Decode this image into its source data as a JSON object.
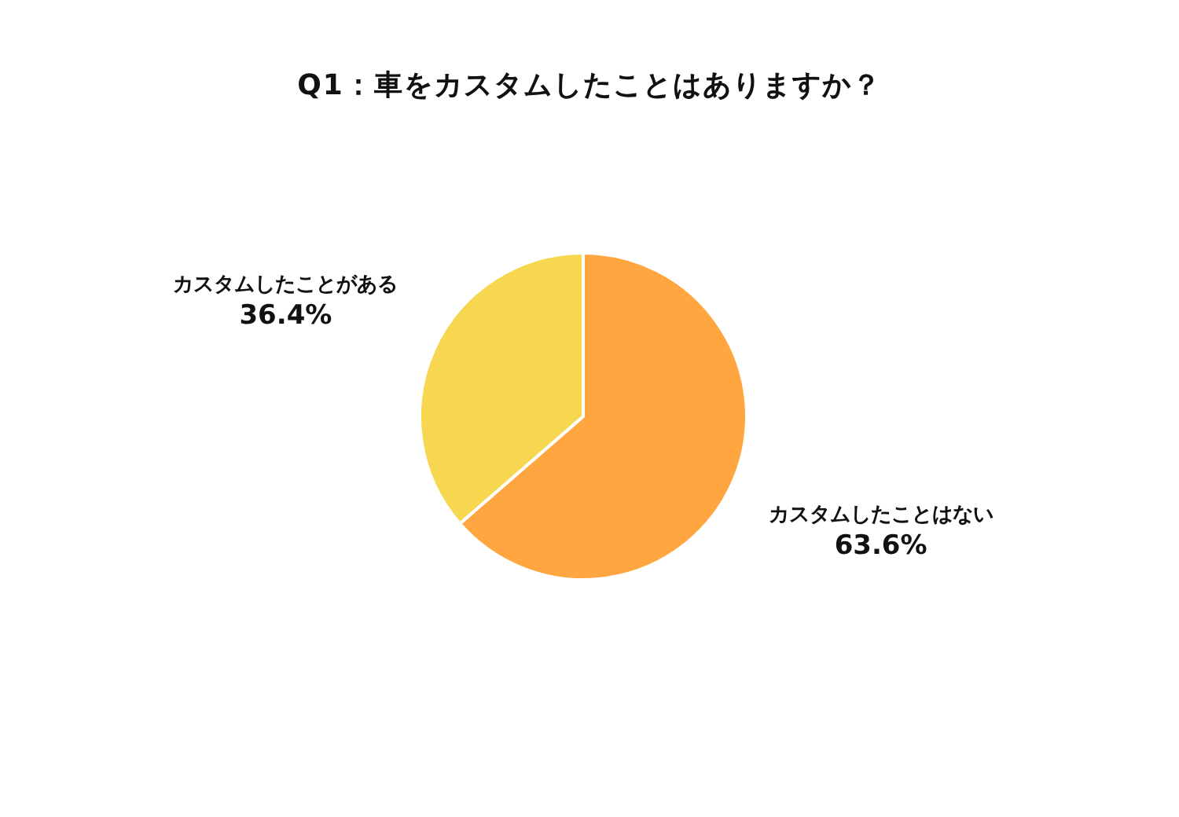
{
  "chart_data": {
    "type": "pie",
    "title": "Q1：車をカスタムしたことはありますか？",
    "categories": [
      "カスタムしたことはない",
      "カスタムしたことがある"
    ],
    "values": [
      63.6,
      36.4
    ],
    "colors": [
      "#ffa640",
      "#f7d74f"
    ],
    "value_labels": [
      "63.6%",
      "36.4%"
    ],
    "legend": false
  }
}
